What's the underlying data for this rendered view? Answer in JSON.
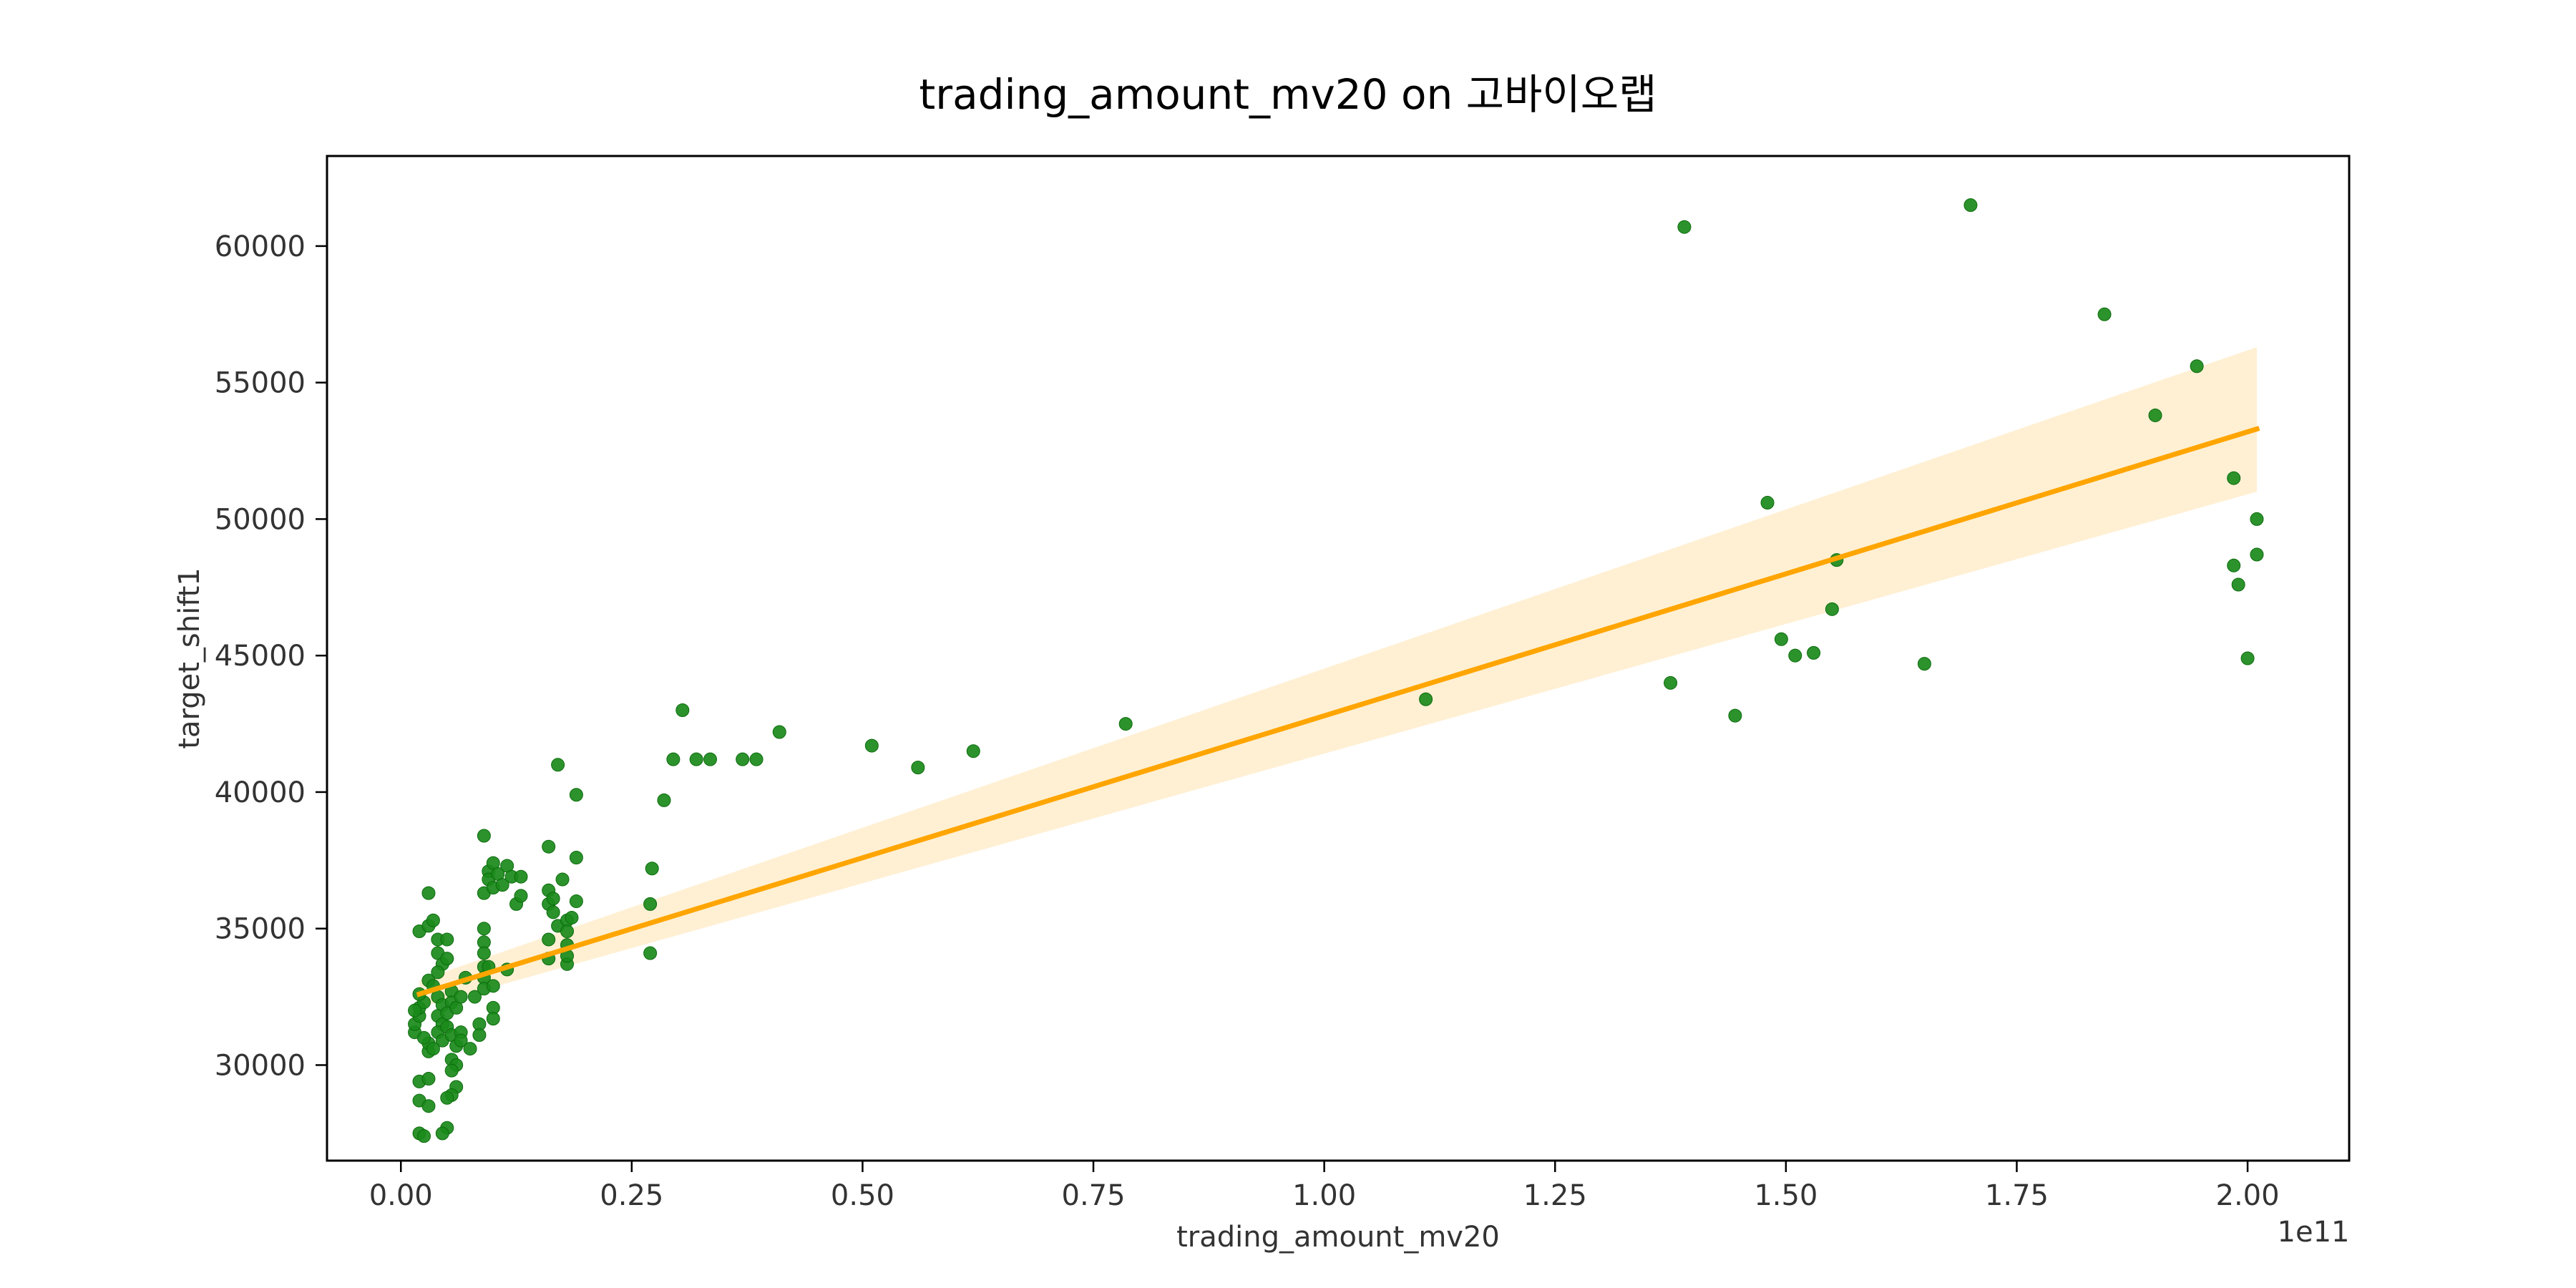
{
  "chart_data": {
    "type": "scatter",
    "title": "trading_amount_mv20 on 고바이오랩",
    "xlabel": "trading_amount_mv20",
    "ylabel": "target_shift1",
    "x_scale_label": "1e11",
    "x_units_note": "x values in units of 1e11",
    "xlim": [
      -0.08,
      2.11
    ],
    "ylim": [
      26500,
      63300
    ],
    "x_ticks": [
      0.0,
      0.25,
      0.5,
      0.75,
      1.0,
      1.25,
      1.5,
      1.75,
      2.0
    ],
    "x_tick_labels": [
      "0.00",
      "0.25",
      "0.50",
      "0.75",
      "1.00",
      "1.25",
      "1.50",
      "1.75",
      "2.00"
    ],
    "y_ticks": [
      30000,
      35000,
      40000,
      45000,
      50000,
      55000,
      60000
    ],
    "y_tick_labels": [
      "30000",
      "35000",
      "40000",
      "45000",
      "50000",
      "55000",
      "60000"
    ],
    "grid": false,
    "colors": {
      "points": "#1a8a1a",
      "regression": "#ffa500",
      "ci_band": "#ffa500"
    },
    "regression": {
      "x": [
        0.02,
        2.01
      ],
      "y": [
        32600,
        53300
      ],
      "ci_upper": [
        33100,
        56300
      ],
      "ci_lower": [
        32100,
        51000
      ]
    },
    "points": [
      [
        0.02,
        27500
      ],
      [
        0.025,
        27400
      ],
      [
        0.02,
        28700
      ],
      [
        0.03,
        28500
      ],
      [
        0.02,
        29400
      ],
      [
        0.03,
        29500
      ],
      [
        0.015,
        31200
      ],
      [
        0.015,
        31500
      ],
      [
        0.02,
        31800
      ],
      [
        0.02,
        32100
      ],
      [
        0.025,
        32300
      ],
      [
        0.03,
        30500
      ],
      [
        0.03,
        30800
      ],
      [
        0.025,
        31000
      ],
      [
        0.02,
        32600
      ],
      [
        0.015,
        32000
      ],
      [
        0.03,
        33100
      ],
      [
        0.02,
        34900
      ],
      [
        0.03,
        35100
      ],
      [
        0.035,
        35300
      ],
      [
        0.03,
        36300
      ],
      [
        0.04,
        34600
      ],
      [
        0.04,
        34100
      ],
      [
        0.045,
        33700
      ],
      [
        0.04,
        33400
      ],
      [
        0.035,
        32900
      ],
      [
        0.04,
        32500
      ],
      [
        0.045,
        32200
      ],
      [
        0.04,
        31800
      ],
      [
        0.045,
        31500
      ],
      [
        0.04,
        31200
      ],
      [
        0.045,
        30900
      ],
      [
        0.035,
        30600
      ],
      [
        0.05,
        34600
      ],
      [
        0.05,
        33900
      ],
      [
        0.055,
        32700
      ],
      [
        0.055,
        32300
      ],
      [
        0.05,
        31900
      ],
      [
        0.05,
        31400
      ],
      [
        0.055,
        31100
      ],
      [
        0.06,
        30700
      ],
      [
        0.055,
        30200
      ],
      [
        0.06,
        30000
      ],
      [
        0.055,
        29800
      ],
      [
        0.06,
        29200
      ],
      [
        0.055,
        28900
      ],
      [
        0.05,
        28800
      ],
      [
        0.05,
        27700
      ],
      [
        0.045,
        27500
      ],
      [
        0.06,
        32100
      ],
      [
        0.065,
        32500
      ],
      [
        0.065,
        31200
      ],
      [
        0.065,
        30900
      ],
      [
        0.07,
        33200
      ],
      [
        0.075,
        30600
      ],
      [
        0.08,
        32500
      ],
      [
        0.085,
        31500
      ],
      [
        0.085,
        31100
      ],
      [
        0.09,
        38400
      ],
      [
        0.09,
        36300
      ],
      [
        0.09,
        35000
      ],
      [
        0.09,
        34500
      ],
      [
        0.09,
        34100
      ],
      [
        0.09,
        33600
      ],
      [
        0.09,
        33200
      ],
      [
        0.09,
        32800
      ],
      [
        0.095,
        37100
      ],
      [
        0.095,
        36800
      ],
      [
        0.095,
        33600
      ],
      [
        0.1,
        37400
      ],
      [
        0.1,
        36500
      ],
      [
        0.1,
        32900
      ],
      [
        0.1,
        32100
      ],
      [
        0.1,
        31700
      ],
      [
        0.105,
        37000
      ],
      [
        0.11,
        36600
      ],
      [
        0.115,
        37300
      ],
      [
        0.115,
        33500
      ],
      [
        0.12,
        36900
      ],
      [
        0.125,
        35900
      ],
      [
        0.13,
        36200
      ],
      [
        0.13,
        36900
      ],
      [
        0.16,
        38000
      ],
      [
        0.16,
        36400
      ],
      [
        0.16,
        35900
      ],
      [
        0.16,
        34600
      ],
      [
        0.16,
        33900
      ],
      [
        0.165,
        35600
      ],
      [
        0.165,
        36100
      ],
      [
        0.17,
        41000
      ],
      [
        0.17,
        35100
      ],
      [
        0.175,
        36800
      ],
      [
        0.18,
        35300
      ],
      [
        0.18,
        34900
      ],
      [
        0.18,
        34400
      ],
      [
        0.18,
        33700
      ],
      [
        0.18,
        34000
      ],
      [
        0.185,
        35400
      ],
      [
        0.19,
        39900
      ],
      [
        0.19,
        37600
      ],
      [
        0.19,
        36000
      ],
      [
        0.27,
        34100
      ],
      [
        0.27,
        35900
      ],
      [
        0.272,
        37200
      ],
      [
        0.285,
        39700
      ],
      [
        0.295,
        41200
      ],
      [
        0.305,
        43000
      ],
      [
        0.32,
        41200
      ],
      [
        0.335,
        41200
      ],
      [
        0.37,
        41200
      ],
      [
        0.385,
        41200
      ],
      [
        0.41,
        42200
      ],
      [
        0.51,
        41700
      ],
      [
        0.56,
        40900
      ],
      [
        0.62,
        41500
      ],
      [
        0.785,
        42500
      ],
      [
        1.11,
        43400
      ],
      [
        1.375,
        44000
      ],
      [
        1.39,
        60700
      ],
      [
        1.445,
        42800
      ],
      [
        1.48,
        50600
      ],
      [
        1.495,
        45600
      ],
      [
        1.51,
        45000
      ],
      [
        1.53,
        45100
      ],
      [
        1.55,
        46700
      ],
      [
        1.555,
        48500
      ],
      [
        1.65,
        44700
      ],
      [
        1.7,
        61500
      ],
      [
        1.845,
        57500
      ],
      [
        1.9,
        53800
      ],
      [
        1.945,
        55600
      ],
      [
        1.985,
        51500
      ],
      [
        1.985,
        48300
      ],
      [
        1.99,
        47600
      ],
      [
        2.0,
        44900
      ],
      [
        2.01,
        50000
      ],
      [
        2.01,
        48700
      ]
    ]
  }
}
